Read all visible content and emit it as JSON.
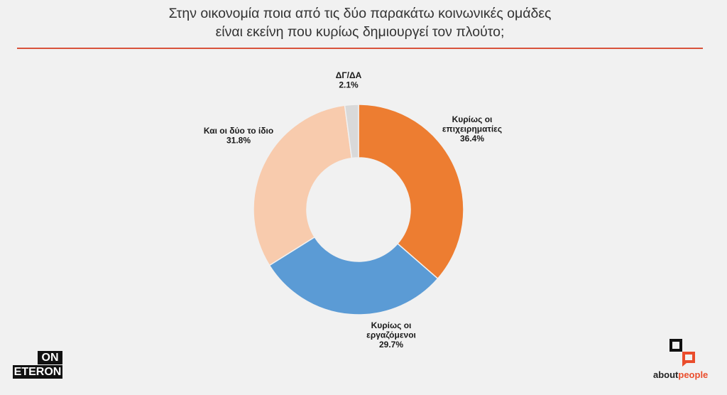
{
  "title": {
    "line1": "Στην οικονομία ποια από τις δύο παρακάτω κοινωνικές ομάδες",
    "line2": "είναι εκείνη που κυρίως δημιουργεί τον πλούτο;"
  },
  "chart_data": {
    "type": "pie",
    "donut": true,
    "slices": [
      {
        "label_lines": [
          "Κυρίως οι",
          "επιχειρηματίες"
        ],
        "value": 36.4,
        "value_label": "36.4%",
        "color": "#ed7d31"
      },
      {
        "label_lines": [
          "Κυρίως οι",
          "εργαζόμενοι"
        ],
        "value": 29.7,
        "value_label": "29.7%",
        "color": "#5b9bd5"
      },
      {
        "label_lines": [
          "Και οι δύο το ίδιο"
        ],
        "value": 31.8,
        "value_label": "31.8%",
        "color": "#f8cbad"
      },
      {
        "label_lines": [
          "ΔΓ/ΔΑ"
        ],
        "value": 2.1,
        "value_label": "2.1%",
        "color": "#d9d9d9"
      }
    ]
  },
  "logos": {
    "left_top": "ON",
    "left_bottom": "ETERON",
    "right_main": "about",
    "right_accent": "people"
  },
  "colors": {
    "background": "#f1f1f1",
    "divider": "#d9533b",
    "aboutpeople_accent": "#ea4d2c"
  }
}
